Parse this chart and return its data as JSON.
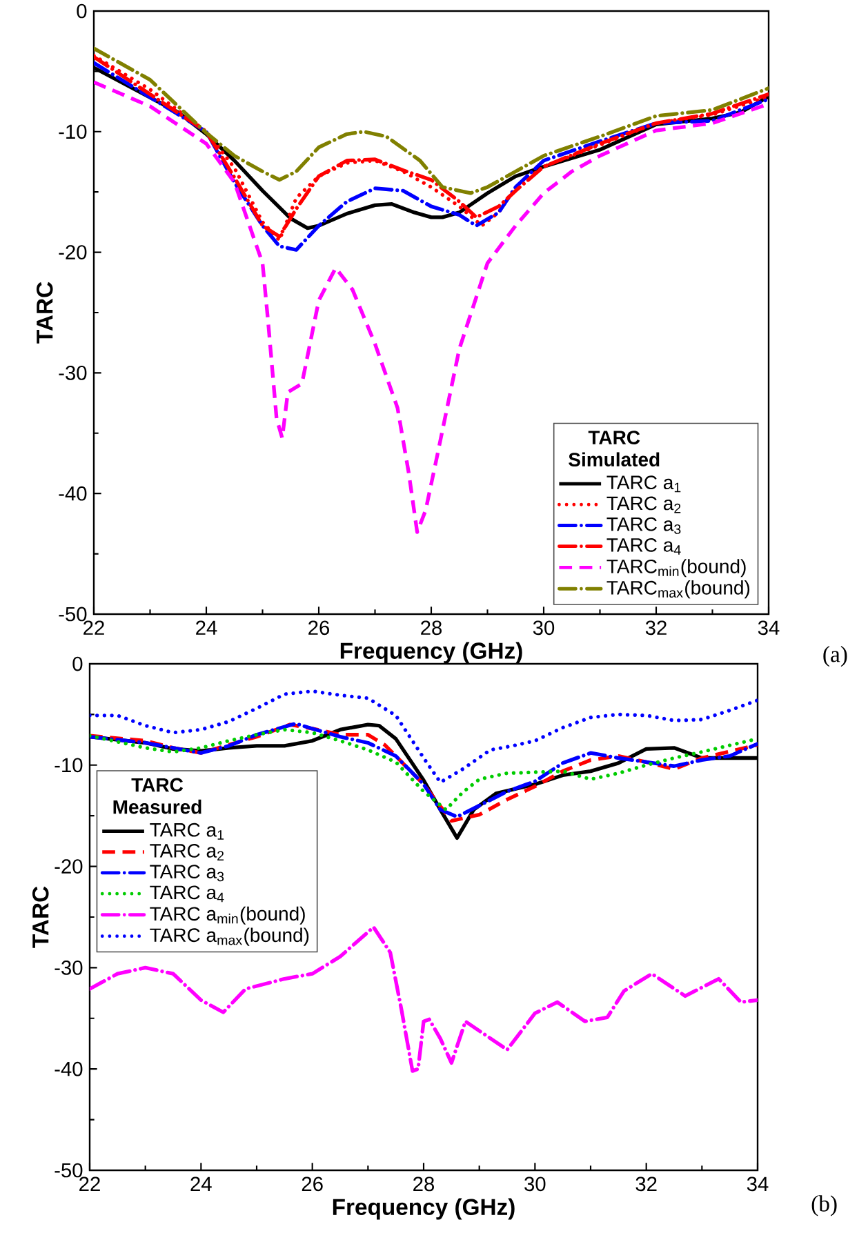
{
  "chart_data": [
    {
      "type": "line",
      "xlabel": "Frequency (GHz)",
      "ylabel": "TARC",
      "xlim": [
        22,
        34
      ],
      "ylim": [
        -50,
        0
      ],
      "xticks": [
        22,
        24,
        26,
        28,
        30,
        32,
        34
      ],
      "yticks": [
        -50,
        -40,
        -30,
        -20,
        -10,
        0
      ],
      "grid": false,
      "legend": "bottom right",
      "legend_title": "TARC Simulated",
      "annotations": [
        "(a)"
      ],
      "series": [
        {
          "name": "TARC a$_{1}$",
          "color": "#000000",
          "line_style": "solid",
          "x": [
            22,
            23.5,
            24,
            24.5,
            25,
            25.5,
            25.8,
            26,
            26.5,
            27,
            27.3,
            27.7,
            28,
            28.2,
            28.5,
            29,
            29.5,
            30,
            31,
            32,
            33,
            33.5,
            34
          ],
          "values": [
            -4.7,
            -8.4,
            -10.2,
            -12.4,
            -14.9,
            -17.2,
            -18,
            -17.8,
            -16.8,
            -16.1,
            -16,
            -16.7,
            -17.1,
            -17.1,
            -16.7,
            -15.1,
            -13.7,
            -12.9,
            -11.5,
            -9.4,
            -8.9,
            -8.4,
            -7.1
          ]
        },
        {
          "name": "TARC a$_{2}$",
          "color": "#ff0000",
          "line_style": "dotted",
          "x": [
            22,
            23,
            24,
            24.5,
            25,
            25.3,
            25.6,
            26,
            26.5,
            27,
            27.5,
            28,
            28.5,
            28.9,
            29.2,
            29.5,
            30,
            31,
            32,
            33,
            34
          ],
          "values": [
            -3.7,
            -6.5,
            -10,
            -13,
            -17.5,
            -19,
            -15.5,
            -13.7,
            -12.6,
            -12.4,
            -13.3,
            -14.6,
            -16.2,
            -17.8,
            -16.7,
            -14.6,
            -12.9,
            -11.1,
            -9.3,
            -8.6,
            -7.1
          ]
        },
        {
          "name": "TARC a$_{3}$",
          "color": "#0000ff",
          "line_style": "dashdot",
          "x": [
            22,
            24,
            24.5,
            25,
            25.3,
            25.6,
            26,
            26.5,
            27,
            27.5,
            28,
            28.5,
            28.8,
            29.2,
            29.5,
            30,
            31,
            32,
            33,
            34
          ],
          "values": [
            -4.3,
            -10,
            -14.2,
            -17.8,
            -19.5,
            -19.8,
            -17.8,
            -15.8,
            -14.7,
            -14.9,
            -16.2,
            -16.9,
            -17.8,
            -16.7,
            -14.6,
            -12.4,
            -10.8,
            -9.3,
            -9.1,
            -7.3
          ]
        },
        {
          "name": "TARC a$_{4}$",
          "color": "#ff0000",
          "line_style": "dashdot",
          "x": [
            22,
            24,
            24.5,
            25,
            25.3,
            25.6,
            26,
            26.5,
            27,
            27.5,
            28,
            28.5,
            28.8,
            29.2,
            29.5,
            30,
            31,
            32,
            33,
            34
          ],
          "values": [
            -3.8,
            -10,
            -13.8,
            -17.8,
            -18.7,
            -16.4,
            -13.7,
            -12.4,
            -12.3,
            -13.2,
            -14,
            -15.8,
            -17.1,
            -16.2,
            -14.9,
            -12.9,
            -11,
            -9.3,
            -8.5,
            -6.9
          ]
        },
        {
          "name": "TARC$_{min}$(bound)",
          "color": "#ff00ff",
          "line_style": "dashed",
          "x": [
            22,
            23,
            24,
            24.5,
            25,
            25.1,
            25.25,
            25.35,
            25.45,
            25.7,
            26,
            26.3,
            26.6,
            27,
            27.4,
            27.6,
            27.75,
            27.9,
            28.1,
            28.5,
            29,
            29.5,
            30,
            30.5,
            31,
            32,
            33,
            34
          ],
          "values": [
            -5.9,
            -7.9,
            -11,
            -14.2,
            -20.9,
            -25.8,
            -33.8,
            -35.4,
            -31.6,
            -30.9,
            -24,
            -21.3,
            -23.1,
            -27.6,
            -32.9,
            -38.3,
            -43.2,
            -41.4,
            -37,
            -28,
            -20.9,
            -17.8,
            -15.1,
            -13.3,
            -12,
            -9.9,
            -9.3,
            -7.7
          ]
        },
        {
          "name": "TARC$_{max}$(bound)",
          "color": "#808000",
          "line_style": "dashdot",
          "x": [
            22,
            23,
            24,
            24.5,
            25,
            25.3,
            25.6,
            26,
            26.5,
            26.8,
            27.2,
            27.8,
            28.2,
            28.7,
            29,
            29.5,
            30,
            31,
            32,
            33,
            34
          ],
          "values": [
            -3.1,
            -5.7,
            -10.1,
            -12,
            -13.3,
            -14,
            -13.3,
            -11.3,
            -10.2,
            -10,
            -10.4,
            -12.4,
            -14.6,
            -15.1,
            -14.6,
            -13.3,
            -12,
            -10.4,
            -8.7,
            -8.2,
            -6.4
          ]
        }
      ]
    },
    {
      "type": "line",
      "xlabel": "Frequency (GHz)",
      "ylabel": "TARC",
      "xlim": [
        22,
        34
      ],
      "ylim": [
        -50,
        0
      ],
      "xticks": [
        22,
        24,
        26,
        28,
        30,
        32,
        34
      ],
      "yticks": [
        -50,
        -40,
        -30,
        -20,
        -10,
        0
      ],
      "grid": false,
      "legend": "top left",
      "legend_title": "TARC Measured",
      "annotations": [
        "(b)"
      ],
      "series": [
        {
          "name": "TARC a$_{1}$",
          "color": "#000000",
          "line_style": "solid",
          "x": [
            22,
            23,
            23.5,
            24,
            24.5,
            25,
            25.5,
            26,
            26.5,
            27,
            27.2,
            27.5,
            28,
            28.3,
            28.6,
            28.9,
            29.3,
            30,
            30.5,
            31,
            31.5,
            32,
            32.5,
            33,
            34
          ],
          "values": [
            -7.2,
            -7.8,
            -8.4,
            -8.6,
            -8.3,
            -8.1,
            -8.1,
            -7.6,
            -6.5,
            -6,
            -6.1,
            -7.4,
            -11.5,
            -14.4,
            -17.2,
            -14.4,
            -12.8,
            -11.9,
            -11,
            -10.6,
            -9.8,
            -8.4,
            -8.3,
            -9.3,
            -9.3
          ]
        },
        {
          "name": "TARC a$_{2}$",
          "color": "#ff0000",
          "line_style": "dashed",
          "x": [
            22,
            23,
            23.5,
            24,
            24.5,
            25,
            25.6,
            26,
            26.5,
            27,
            27.3,
            28,
            28.5,
            29,
            29.5,
            30,
            30.5,
            31,
            31.5,
            32,
            32.5,
            33,
            34
          ],
          "values": [
            -7.1,
            -7.6,
            -8.3,
            -8.8,
            -8,
            -7.2,
            -6,
            -6.4,
            -7,
            -7,
            -8,
            -11.9,
            -15.5,
            -14.9,
            -13.4,
            -12.1,
            -10.6,
            -9.5,
            -9.1,
            -9.7,
            -10.4,
            -9.3,
            -8
          ]
        },
        {
          "name": "TARC a$_{3}$",
          "color": "#0000ff",
          "line_style": "dashdot",
          "x": [
            22,
            23,
            23.5,
            24,
            24.5,
            25,
            25.7,
            26,
            26.5,
            27,
            27.5,
            28,
            28.3,
            28.6,
            29,
            29.5,
            30,
            30.5,
            31,
            31.5,
            32,
            32.5,
            33,
            33.5,
            34
          ],
          "values": [
            -7.2,
            -7.8,
            -8.3,
            -8.8,
            -8.1,
            -7,
            -5.9,
            -6.4,
            -7.2,
            -7.8,
            -9.1,
            -11.9,
            -14.4,
            -15.1,
            -14,
            -12.6,
            -11.6,
            -9.8,
            -8.8,
            -9.3,
            -9.7,
            -10.1,
            -9.5,
            -9.1,
            -7.9
          ]
        },
        {
          "name": "TARC a$_{4}$",
          "color": "#00cc00",
          "line_style": "dotted",
          "x": [
            22,
            23,
            23.5,
            24,
            24.5,
            25,
            25.5,
            26,
            26.5,
            27,
            27.5,
            28,
            28.4,
            28.7,
            29,
            29.5,
            30,
            30.5,
            31,
            31.5,
            32,
            32.5,
            33,
            34
          ],
          "values": [
            -7.1,
            -8.3,
            -8.7,
            -8.3,
            -7.6,
            -7,
            -6.5,
            -6.8,
            -7.6,
            -8.5,
            -9.7,
            -12.6,
            -14.4,
            -12.7,
            -11.4,
            -10.8,
            -10.7,
            -10.6,
            -11.4,
            -10.8,
            -10,
            -9.3,
            -8.7,
            -7.4
          ]
        },
        {
          "name": "TARC a$_{min}$(bound)",
          "color": "#ff00ff",
          "line_style": "dashdot",
          "x": [
            22,
            22.5,
            23,
            23.5,
            24,
            24.4,
            24.8,
            25.5,
            26,
            26.5,
            27.1,
            27.4,
            27.6,
            27.8,
            27.9,
            28,
            28.1,
            28.3,
            28.5,
            28.75,
            29.5,
            30,
            30.4,
            30.9,
            31.3,
            31.6,
            32.1,
            32.7,
            33.3,
            33.7,
            34
          ],
          "values": [
            -32.1,
            -30.6,
            -30,
            -30.6,
            -33.2,
            -34.4,
            -32.1,
            -31.1,
            -30.6,
            -28.9,
            -26,
            -28.5,
            -34.1,
            -40.2,
            -40,
            -35.3,
            -35.1,
            -37,
            -39.4,
            -35.3,
            -38.1,
            -34.5,
            -33.4,
            -35.3,
            -34.9,
            -32.3,
            -30.6,
            -32.8,
            -31.1,
            -33.4,
            -33.2
          ]
        },
        {
          "name": "TARC a$_{max}$(bound)",
          "color": "#0000ff",
          "line_style": "dotted",
          "x": [
            22,
            22.5,
            23,
            23.5,
            24,
            24.5,
            25,
            25.5,
            26,
            26.5,
            27,
            27.5,
            28,
            28.3,
            28.7,
            29.2,
            29.6,
            30,
            30.5,
            31,
            31.5,
            32,
            32.5,
            33,
            33.5,
            34
          ],
          "values": [
            -5.1,
            -5.1,
            -6.1,
            -6.8,
            -6.5,
            -5.7,
            -4.4,
            -3,
            -2.7,
            -3.1,
            -3.4,
            -5.1,
            -9.3,
            -11.7,
            -10.4,
            -8.5,
            -8.1,
            -7.6,
            -6.3,
            -5.3,
            -5,
            -5.1,
            -5.6,
            -5.5,
            -4.6,
            -3.6
          ]
        }
      ]
    }
  ]
}
